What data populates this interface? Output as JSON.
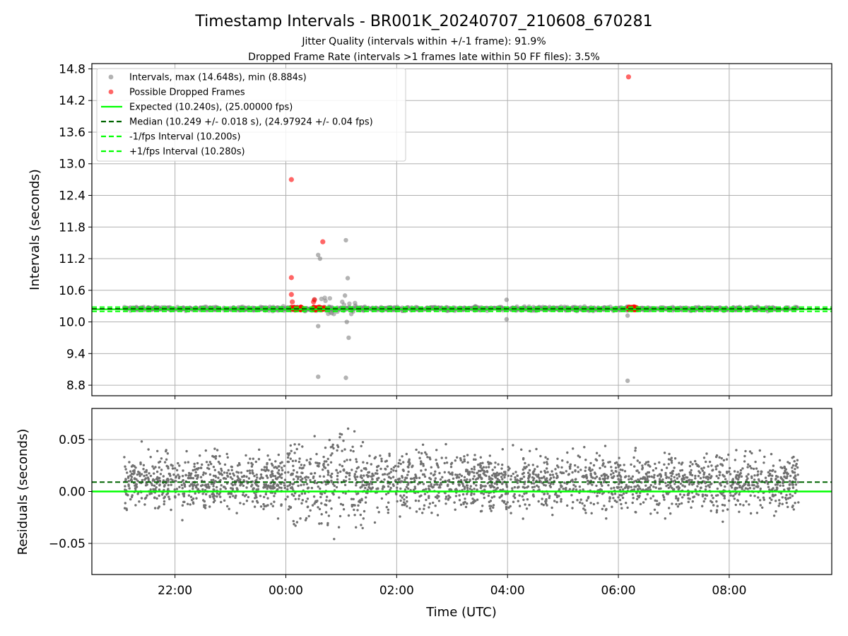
{
  "header": {
    "title": "Timestamp Intervals - BR001K_20240707_210608_670281",
    "subtitle1": "Jitter Quality (intervals within +/-1 frame): 91.9%",
    "subtitle2": "Dropped Frame Rate (intervals >1 frames late within 50 FF files): 3.5%"
  },
  "chart_data": [
    {
      "type": "scatter",
      "panel": "top",
      "ylabel": "Intervals (seconds)",
      "xlabel": "",
      "xlim_hours": [
        20.5,
        9.85
      ],
      "ylim": [
        8.6,
        14.9
      ],
      "yticks": [
        8.8,
        9.4,
        10.0,
        10.6,
        11.2,
        11.8,
        12.4,
        13.0,
        13.6,
        14.2,
        14.8
      ],
      "ytick_labels": [
        "8.8",
        "9.4",
        "10.0",
        "10.6",
        "11.2",
        "11.8",
        "12.4",
        "13.0",
        "13.6",
        "14.2",
        "14.8"
      ],
      "grid": true,
      "legend_position": "top-left",
      "legend": [
        {
          "label": "Intervals, max (14.648s), min (8.884s)",
          "kind": "marker",
          "color": "#808080"
        },
        {
          "label": "Possible Dropped Frames",
          "kind": "marker",
          "color": "#ff0000"
        },
        {
          "label": "Expected (10.240s), (25.00000 fps)",
          "kind": "solid",
          "color": "#00ff00"
        },
        {
          "label": "Median (10.249 +/- 0.018 s), (24.97924 +/- 0.04 fps)",
          "kind": "dashed",
          "color": "#006400"
        },
        {
          "label": "-1/fps Interval (10.200s)",
          "kind": "dashed",
          "color": "#00ff00"
        },
        {
          "label": "+1/fps Interval (10.280s)",
          "kind": "dashed",
          "color": "#00ff00"
        }
      ],
      "series": [
        {
          "name": "Intervals, max (14.648s), min (8.884s)",
          "color": "#808080",
          "band": {
            "x_start": "21:05",
            "x_end": "09:15",
            "center": 10.25,
            "spread": 0.03
          },
          "outliers": [
            {
              "x": "00:35",
              "y": 11.27
            },
            {
              "x": "00:37",
              "y": 11.2
            },
            {
              "x": "00:35",
              "y": 9.92
            },
            {
              "x": "00:35",
              "y": 8.96
            },
            {
              "x": "01:05",
              "y": 11.55
            },
            {
              "x": "01:07",
              "y": 10.83
            },
            {
              "x": "01:04",
              "y": 10.5
            },
            {
              "x": "01:06",
              "y": 10.0
            },
            {
              "x": "01:08",
              "y": 9.7
            },
            {
              "x": "01:05",
              "y": 8.94
            },
            {
              "x": "03:59",
              "y": 10.42
            },
            {
              "x": "03:59",
              "y": 10.05
            },
            {
              "x": "06:10",
              "y": 10.12
            },
            {
              "x": "06:10",
              "y": 8.884
            }
          ]
        },
        {
          "name": "Possible Dropped Frames",
          "color": "#ff0000",
          "points": [
            {
              "x": "00:06",
              "y": 12.7
            },
            {
              "x": "00:06",
              "y": 10.84
            },
            {
              "x": "00:06",
              "y": 10.52
            },
            {
              "x": "00:07",
              "y": 10.38
            },
            {
              "x": "00:06",
              "y": 10.28
            },
            {
              "x": "00:08",
              "y": 10.27
            },
            {
              "x": "00:10",
              "y": 10.26
            },
            {
              "x": "00:12",
              "y": 10.27
            },
            {
              "x": "00:14",
              "y": 10.26
            },
            {
              "x": "00:16",
              "y": 10.27
            },
            {
              "x": "00:18",
              "y": 10.26
            },
            {
              "x": "00:30",
              "y": 10.27
            },
            {
              "x": "00:31",
              "y": 10.42
            },
            {
              "x": "00:30",
              "y": 10.38
            },
            {
              "x": "00:32",
              "y": 10.26
            },
            {
              "x": "00:34",
              "y": 10.27
            },
            {
              "x": "00:36",
              "y": 10.26
            },
            {
              "x": "00:38",
              "y": 10.27
            },
            {
              "x": "00:40",
              "y": 10.26
            },
            {
              "x": "00:42",
              "y": 10.27
            },
            {
              "x": "00:40",
              "y": 11.52
            },
            {
              "x": "06:11",
              "y": 14.648
            },
            {
              "x": "06:11",
              "y": 10.26
            },
            {
              "x": "06:13",
              "y": 10.26
            },
            {
              "x": "06:15",
              "y": 10.27
            },
            {
              "x": "06:17",
              "y": 10.26
            },
            {
              "x": "06:19",
              "y": 10.26
            }
          ]
        },
        {
          "name": "Expected (10.240s), (25.00000 fps)",
          "kind": "hline",
          "y": 10.24,
          "color": "#00ff00"
        },
        {
          "name": "Median (10.249 +/- 0.018 s), (24.97924 +/- 0.04 fps)",
          "kind": "hline",
          "y": 10.249,
          "color": "#006400"
        },
        {
          "name": "-1/fps Interval (10.200s)",
          "kind": "hline",
          "y": 10.2,
          "color": "#00ff00"
        },
        {
          "name": "+1/fps Interval (10.280s)",
          "kind": "hline",
          "y": 10.28,
          "color": "#00ff00"
        }
      ]
    },
    {
      "type": "scatter",
      "panel": "bottom",
      "ylabel": "Residuals (seconds)",
      "xlabel": "Time (UTC)",
      "xlim_hours": [
        20.5,
        9.85
      ],
      "ylim": [
        -0.08,
        0.08
      ],
      "yticks": [
        -0.05,
        0.0,
        0.05
      ],
      "ytick_labels": [
        "−0.05",
        "0.00",
        "0.05"
      ],
      "xticks": [
        "22:00",
        "00:00",
        "02:00",
        "04:00",
        "06:00",
        "08:00"
      ],
      "grid": true,
      "series": [
        {
          "name": "",
          "color": "#707070",
          "band": {
            "x_start": "21:05",
            "x_end": "09:15",
            "center": 0.009,
            "spread": 0.025
          }
        },
        {
          "name": "",
          "kind": "hline",
          "y": 0.0,
          "color": "#00ff00"
        },
        {
          "name": "",
          "kind": "hline",
          "y": 0.009,
          "color": "#006400",
          "style": "dashed"
        }
      ]
    }
  ]
}
